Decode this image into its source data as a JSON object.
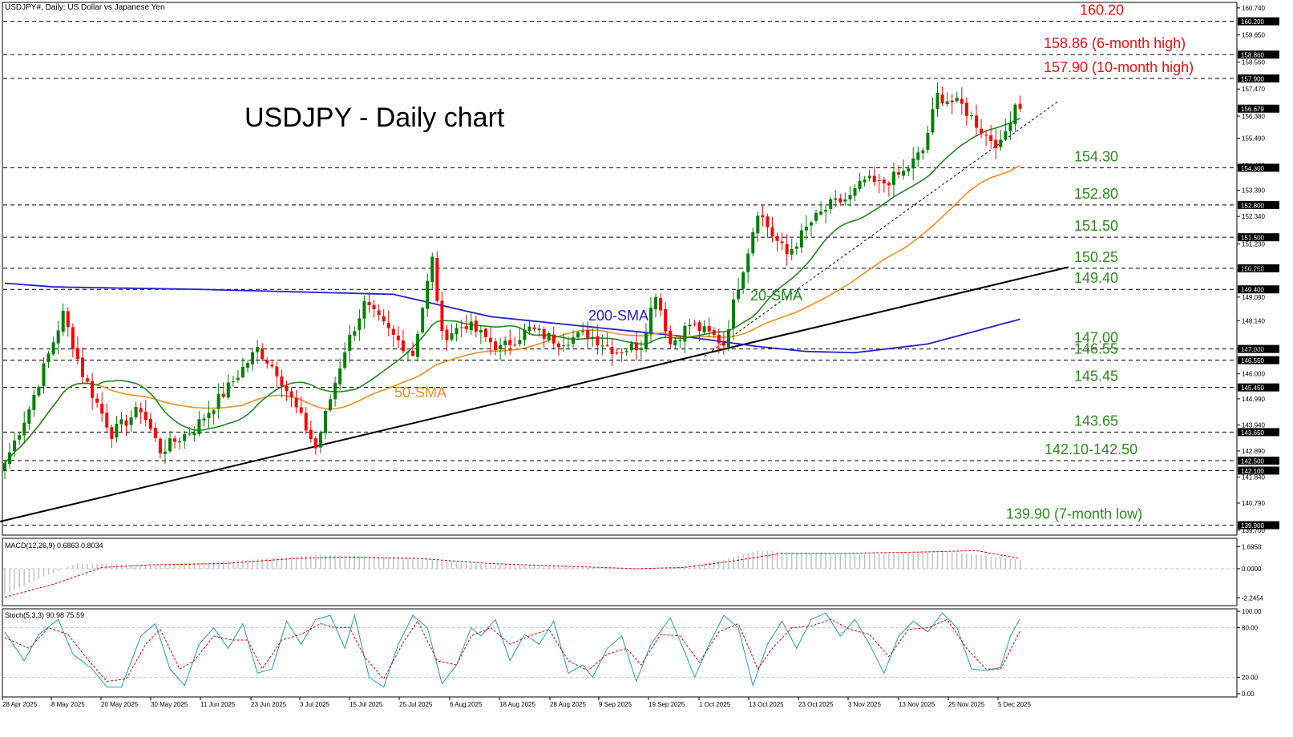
{
  "window": {
    "header": "USDJPY#, Daily:  US Dollar vs Japanese Yen"
  },
  "title": "USDJPY - Daily chart",
  "colors": {
    "bull": "#008000",
    "bear": "#ff0000",
    "sma20": "#1f8a1f",
    "sma50": "#f0901c",
    "sma200": "#2222cc",
    "resistance_label": "#ee1111",
    "support_label": "#2e8b1e",
    "trendline": "#000000"
  },
  "chart_data": [
    {
      "type": "candlestick",
      "symbol": "USDJPY",
      "timeframe": "Daily",
      "ylim": [
        139.5,
        160.8
      ],
      "y_ticks": [
        "160.740",
        "159.650",
        "158.560",
        "157.470",
        "156.380",
        "155.490",
        "154.400",
        "153.390",
        "152.340",
        "151.230",
        "150.180",
        "149.090",
        "148.140",
        "147.000",
        "146.000",
        "144.990",
        "143.940",
        "142.890",
        "141.840",
        "140.790",
        "139.700"
      ],
      "x_ticks": [
        "28 Apr 2025",
        "8 May 2025",
        "20 May 2025",
        "30 May 2025",
        "11 Jun 2025",
        "23 Jun 2025",
        "3 Jul 2025",
        "15 Jul 2025",
        "25 Jul 2025",
        "6 Aug 2025",
        "18 Aug 2025",
        "28 Aug 2025",
        "9 Sep 2025",
        "19 Sep 2025",
        "1 Oct 2025",
        "13 Oct 2025",
        "23 Oct 2025",
        "3 Nov 2025",
        "13 Nov 2025",
        "25 Nov 2025",
        "5 Dec 2025"
      ],
      "close_anchors": [
        [
          0,
          142.4
        ],
        [
          5,
          144.6
        ],
        [
          12,
          148.4
        ],
        [
          16,
          146.0
        ],
        [
          22,
          143.6
        ],
        [
          28,
          144.6
        ],
        [
          32,
          142.9
        ],
        [
          39,
          143.8
        ],
        [
          45,
          145.2
        ],
        [
          52,
          147.0
        ],
        [
          56,
          146.1
        ],
        [
          61,
          144.2
        ],
        [
          64,
          143.0
        ],
        [
          70,
          147.0
        ],
        [
          74,
          148.8
        ],
        [
          80,
          147.5
        ],
        [
          84,
          146.8
        ],
        [
          88,
          150.6
        ],
        [
          90,
          147.5
        ],
        [
          95,
          148.0
        ],
        [
          102,
          147.0
        ],
        [
          108,
          147.8
        ],
        [
          114,
          147.3
        ],
        [
          120,
          147.6
        ],
        [
          126,
          146.9
        ],
        [
          131,
          147.2
        ],
        [
          134,
          149.3
        ],
        [
          137,
          147.2
        ],
        [
          141,
          148.0
        ],
        [
          146,
          147.5
        ],
        [
          148,
          147.2
        ],
        [
          151,
          149.6
        ],
        [
          153,
          151.0
        ],
        [
          155,
          152.6
        ],
        [
          158,
          151.6
        ],
        [
          161,
          150.8
        ],
        [
          166,
          152.1
        ],
        [
          170,
          152.8
        ],
        [
          174,
          153.1
        ],
        [
          177,
          153.8
        ],
        [
          180,
          153.6
        ],
        [
          185,
          154.1
        ],
        [
          189,
          155.0
        ],
        [
          192,
          157.2
        ],
        [
          197,
          156.8
        ],
        [
          202,
          155.6
        ],
        [
          205,
          155.2
        ],
        [
          208,
          156.9
        ],
        [
          209,
          156.7
        ]
      ],
      "last_close": 156.679,
      "indicators": [
        {
          "name": "20-SMA",
          "label": "20-SMA",
          "color": "#1f8a1f",
          "period": 20
        },
        {
          "name": "50-SMA",
          "label": "50-SMA",
          "color": "#f0901c",
          "period": 50
        },
        {
          "name": "200-SMA",
          "label": "200-SMA",
          "color": "#2222cc",
          "values": [
            [
              0,
              149.65
            ],
            [
              10,
              149.5
            ],
            [
              40,
              149.4
            ],
            [
              80,
              149.2
            ],
            [
              100,
              148.3
            ],
            [
              120,
              147.9
            ],
            [
              140,
              147.5
            ],
            [
              155,
              147.1
            ],
            [
              165,
              146.9
            ],
            [
              175,
              146.85
            ],
            [
              190,
              147.2
            ],
            [
              209,
              148.2
            ]
          ]
        }
      ],
      "levels": [
        {
          "value": 160.2,
          "axis_label": "160.200",
          "text": "160.20",
          "kind": "resistance"
        },
        {
          "value": 158.86,
          "axis_label": "158.860",
          "text": "158.86 (6-month high)",
          "kind": "resistance"
        },
        {
          "value": 157.9,
          "axis_label": "157.900",
          "text": "157.90 (10-month high)",
          "kind": "resistance"
        },
        {
          "value": 154.3,
          "axis_label": "154.300",
          "text": "154.30",
          "kind": "support"
        },
        {
          "value": 152.8,
          "axis_label": "152.800",
          "text": "152.80",
          "kind": "support"
        },
        {
          "value": 151.5,
          "axis_label": "151.500",
          "text": "151.50",
          "kind": "support"
        },
        {
          "value": 150.25,
          "axis_label": "150.250",
          "text": "150.25",
          "kind": "support"
        },
        {
          "value": 149.4,
          "axis_label": "149.400",
          "text": "149.40",
          "kind": "support"
        },
        {
          "value": 147.0,
          "axis_label": "147.000",
          "text": "147.00",
          "kind": "support"
        },
        {
          "value": 146.55,
          "axis_label": "146.550",
          "text": "146.55",
          "kind": "support"
        },
        {
          "value": 145.45,
          "axis_label": "145.450",
          "text": "145.45",
          "kind": "support"
        },
        {
          "value": 143.65,
          "axis_label": "143.650",
          "text": "143.65",
          "kind": "support"
        },
        {
          "value": 142.5,
          "axis_label": "142.500",
          "text": "142.10-142.50",
          "kind": "support"
        },
        {
          "value": 142.1,
          "axis_label": "142.100",
          "text": "",
          "kind": "support"
        },
        {
          "value": 139.9,
          "axis_label": "139.900",
          "text": "139.90 (7-month low)",
          "kind": "support"
        }
      ],
      "trendlines": [
        {
          "style": "solid",
          "from": [
            -2,
            140.0
          ],
          "to": [
            219,
            150.3
          ]
        },
        {
          "style": "dashed",
          "from": [
            144,
            146.7
          ],
          "to": [
            217,
            157.0
          ]
        }
      ]
    },
    {
      "type": "histogram",
      "name": "MACD",
      "label": "MACD(12,26,9) 0.6863 0.8034",
      "ylim": [
        -2.6,
        2.1
      ],
      "y_ticks": [
        "1.6950",
        "0.0000",
        "-2.2454"
      ],
      "macd_anchors": [
        [
          0,
          -2.0
        ],
        [
          8,
          -0.6
        ],
        [
          15,
          0.4
        ],
        [
          30,
          0.3
        ],
        [
          40,
          0.5
        ],
        [
          55,
          0.8
        ],
        [
          65,
          1.1
        ],
        [
          80,
          0.9
        ],
        [
          90,
          0.6
        ],
        [
          100,
          0.3
        ],
        [
          110,
          0.3
        ],
        [
          120,
          0.1
        ],
        [
          130,
          -0.1
        ],
        [
          140,
          0.2
        ],
        [
          148,
          0.7
        ],
        [
          155,
          1.4
        ],
        [
          165,
          1.2
        ],
        [
          175,
          1.1
        ],
        [
          185,
          1.2
        ],
        [
          195,
          1.3
        ],
        [
          202,
          1.0
        ],
        [
          209,
          0.69
        ]
      ],
      "signal_anchors": [
        [
          0,
          -2.2
        ],
        [
          10,
          -1.2
        ],
        [
          20,
          0.1
        ],
        [
          30,
          0.3
        ],
        [
          45,
          0.4
        ],
        [
          60,
          0.8
        ],
        [
          70,
          0.9
        ],
        [
          85,
          0.8
        ],
        [
          100,
          0.4
        ],
        [
          115,
          0.2
        ],
        [
          130,
          0.0
        ],
        [
          140,
          0.1
        ],
        [
          150,
          0.6
        ],
        [
          160,
          1.2
        ],
        [
          175,
          1.2
        ],
        [
          190,
          1.3
        ],
        [
          200,
          1.4
        ],
        [
          209,
          0.8
        ]
      ],
      "last_macd": 0.6863,
      "last_signal": 0.8034
    },
    {
      "type": "line",
      "name": "Stochastic",
      "label": "Stoch(5,3,3) 90.98 75.59",
      "ylim": [
        0,
        100
      ],
      "y_ticks": [
        "100.00",
        "80.00",
        "20.00",
        "0.00"
      ],
      "k_anchors": [
        [
          0,
          75
        ],
        [
          4,
          40
        ],
        [
          7,
          72
        ],
        [
          11,
          90
        ],
        [
          14,
          48
        ],
        [
          18,
          30
        ],
        [
          21,
          8
        ],
        [
          24,
          8
        ],
        [
          28,
          70
        ],
        [
          31,
          85
        ],
        [
          34,
          30
        ],
        [
          37,
          10
        ],
        [
          40,
          60
        ],
        [
          43,
          80
        ],
        [
          46,
          55
        ],
        [
          49,
          85
        ],
        [
          52,
          25
        ],
        [
          55,
          30
        ],
        [
          58,
          88
        ],
        [
          61,
          60
        ],
        [
          64,
          90
        ],
        [
          67,
          95
        ],
        [
          70,
          55
        ],
        [
          72,
          95
        ],
        [
          75,
          20
        ],
        [
          78,
          8
        ],
        [
          81,
          60
        ],
        [
          84,
          95
        ],
        [
          87,
          80
        ],
        [
          90,
          12
        ],
        [
          93,
          35
        ],
        [
          96,
          80
        ],
        [
          98,
          70
        ],
        [
          101,
          90
        ],
        [
          104,
          40
        ],
        [
          107,
          72
        ],
        [
          110,
          60
        ],
        [
          113,
          88
        ],
        [
          116,
          25
        ],
        [
          119,
          35
        ],
        [
          121,
          20
        ],
        [
          124,
          55
        ],
        [
          127,
          70
        ],
        [
          130,
          15
        ],
        [
          133,
          60
        ],
        [
          137,
          92
        ],
        [
          140,
          50
        ],
        [
          142,
          20
        ],
        [
          145,
          60
        ],
        [
          148,
          95
        ],
        [
          151,
          80
        ],
        [
          154,
          10
        ],
        [
          157,
          60
        ],
        [
          160,
          88
        ],
        [
          163,
          55
        ],
        [
          166,
          90
        ],
        [
          169,
          98
        ],
        [
          172,
          70
        ],
        [
          175,
          90
        ],
        [
          178,
          60
        ],
        [
          181,
          25
        ],
        [
          184,
          70
        ],
        [
          187,
          88
        ],
        [
          190,
          75
        ],
        [
          193,
          98
        ],
        [
          196,
          80
        ],
        [
          199,
          30
        ],
        [
          202,
          28
        ],
        [
          205,
          32
        ],
        [
          207,
          70
        ],
        [
          209,
          91
        ]
      ],
      "d_anchors": [
        [
          0,
          68
        ],
        [
          5,
          55
        ],
        [
          9,
          80
        ],
        [
          13,
          72
        ],
        [
          17,
          42
        ],
        [
          21,
          15
        ],
        [
          25,
          18
        ],
        [
          29,
          60
        ],
        [
          32,
          78
        ],
        [
          36,
          30
        ],
        [
          39,
          40
        ],
        [
          43,
          70
        ],
        [
          47,
          65
        ],
        [
          50,
          65
        ],
        [
          53,
          30
        ],
        [
          57,
          65
        ],
        [
          61,
          72
        ],
        [
          65,
          85
        ],
        [
          68,
          80
        ],
        [
          71,
          80
        ],
        [
          74,
          45
        ],
        [
          78,
          18
        ],
        [
          82,
          62
        ],
        [
          85,
          88
        ],
        [
          89,
          40
        ],
        [
          93,
          35
        ],
        [
          96,
          70
        ],
        [
          100,
          80
        ],
        [
          104,
          60
        ],
        [
          108,
          70
        ],
        [
          112,
          78
        ],
        [
          116,
          40
        ],
        [
          120,
          28
        ],
        [
          124,
          48
        ],
        [
          128,
          55
        ],
        [
          131,
          35
        ],
        [
          135,
          72
        ],
        [
          139,
          70
        ],
        [
          143,
          38
        ],
        [
          147,
          75
        ],
        [
          151,
          85
        ],
        [
          155,
          30
        ],
        [
          158,
          55
        ],
        [
          162,
          80
        ],
        [
          166,
          82
        ],
        [
          170,
          90
        ],
        [
          174,
          78
        ],
        [
          178,
          72
        ],
        [
          182,
          45
        ],
        [
          186,
          78
        ],
        [
          190,
          80
        ],
        [
          194,
          90
        ],
        [
          198,
          55
        ],
        [
          202,
          30
        ],
        [
          205,
          30
        ],
        [
          209,
          76
        ]
      ],
      "last_k": 90.98,
      "last_d": 75.59
    }
  ]
}
